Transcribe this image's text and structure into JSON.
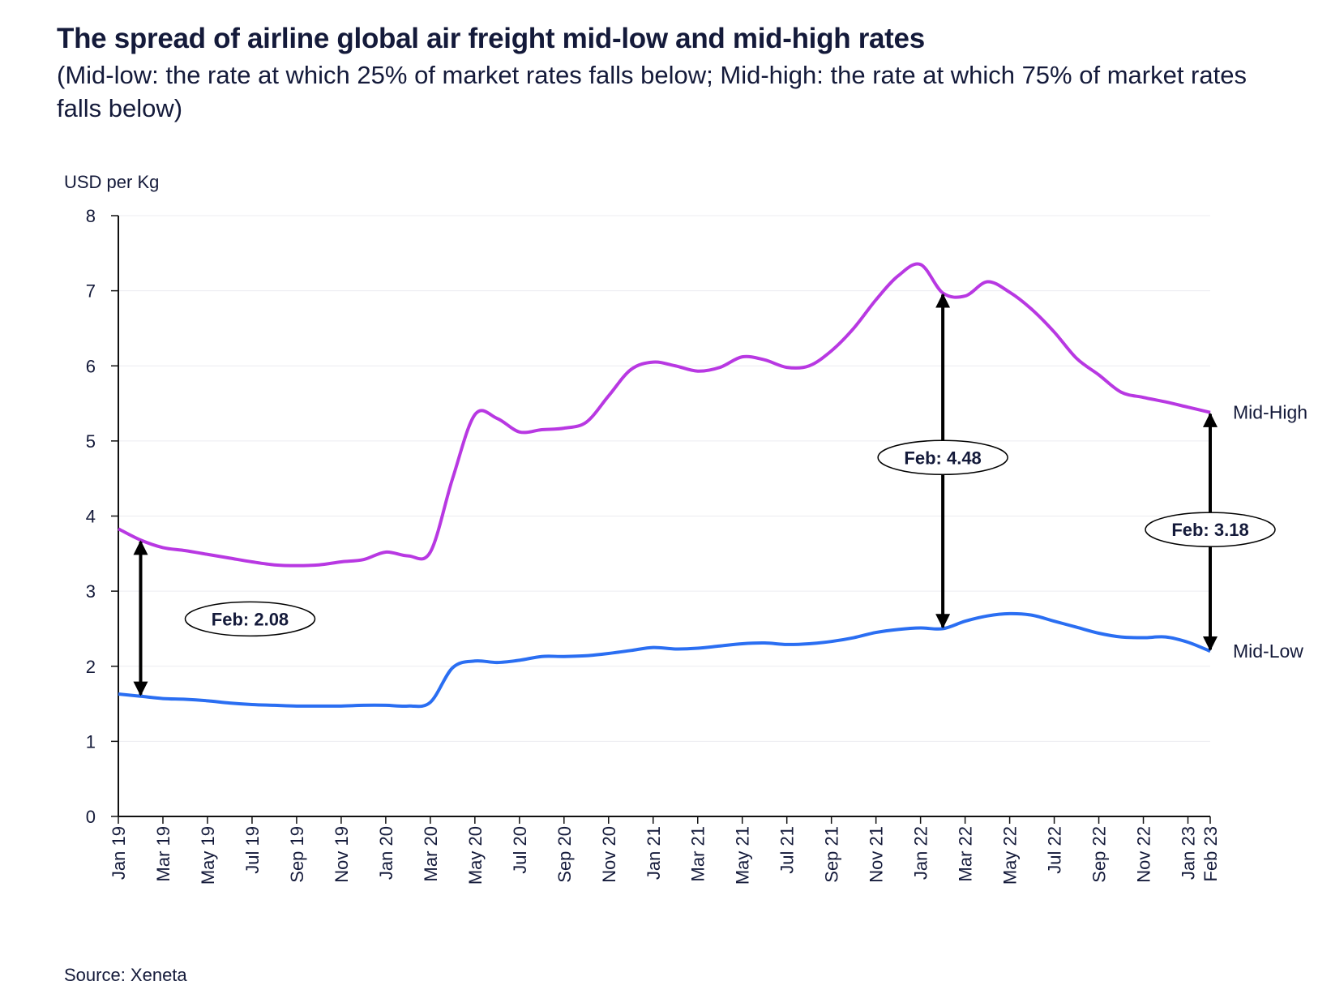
{
  "chart_data": {
    "type": "line",
    "title": "The spread of airline global air freight mid-low and mid-high rates",
    "subtitle": "(Mid-low: the rate at which 25% of market rates falls below; Mid-high: the rate at which 75% of market rates falls below)",
    "ylabel": "USD per Kg",
    "xlabel": "",
    "ylim": [
      0,
      8
    ],
    "yticks": [
      0,
      1,
      2,
      3,
      4,
      5,
      6,
      7,
      8
    ],
    "grid": true,
    "x": [
      "Jan 19",
      "Feb 19",
      "Mar 19",
      "Apr 19",
      "May 19",
      "Jun 19",
      "Jul 19",
      "Aug 19",
      "Sep 19",
      "Oct 19",
      "Nov 19",
      "Dec 19",
      "Jan 20",
      "Feb 20",
      "Mar 20",
      "Apr 20",
      "May 20",
      "Jun 20",
      "Jul 20",
      "Aug 20",
      "Sep 20",
      "Oct 20",
      "Nov 20",
      "Dec 20",
      "Jan 21",
      "Feb 21",
      "Mar 21",
      "Apr 21",
      "May 21",
      "Jun 21",
      "Jul 21",
      "Aug 21",
      "Sep 21",
      "Oct 21",
      "Nov 21",
      "Dec 21",
      "Jan 22",
      "Feb 22",
      "Mar 22",
      "Apr 22",
      "May 22",
      "Jun 22",
      "Jul 22",
      "Aug 22",
      "Sep 22",
      "Oct 22",
      "Nov 22",
      "Dec 22",
      "Jan 23",
      "Feb 23"
    ],
    "xtick_labels": [
      "Jan 19",
      "Mar 19",
      "May 19",
      "Jul 19",
      "Sep 19",
      "Nov 19",
      "Jan 20",
      "Mar 20",
      "May 20",
      "Jul 20",
      "Sep 20",
      "Nov 20",
      "Jan 21",
      "Mar 21",
      "May 21",
      "Jul 21",
      "Sep 21",
      "Nov 21",
      "Jan 22",
      "Mar 22",
      "May 22",
      "Jul 22",
      "Sep 22",
      "Nov 22",
      "Jan 23",
      "Feb 23"
    ],
    "series": [
      {
        "name": "Mid-High",
        "color": "#b838e2",
        "values": [
          3.83,
          3.68,
          3.58,
          3.54,
          3.49,
          3.44,
          3.39,
          3.35,
          3.34,
          3.35,
          3.39,
          3.42,
          3.52,
          3.47,
          3.52,
          4.5,
          5.35,
          5.3,
          5.12,
          5.15,
          5.17,
          5.25,
          5.6,
          5.95,
          6.05,
          6.0,
          5.93,
          5.98,
          6.12,
          6.08,
          5.98,
          6.0,
          6.2,
          6.5,
          6.88,
          7.2,
          7.35,
          6.97,
          6.93,
          7.12,
          6.98,
          6.75,
          6.45,
          6.1,
          5.88,
          5.65,
          5.58,
          5.52,
          5.45,
          5.38
        ]
      },
      {
        "name": "Mid-Low",
        "color": "#2a6ef2",
        "values": [
          1.63,
          1.6,
          1.57,
          1.56,
          1.54,
          1.51,
          1.49,
          1.48,
          1.47,
          1.47,
          1.47,
          1.48,
          1.48,
          1.47,
          1.52,
          1.98,
          2.07,
          2.05,
          2.08,
          2.13,
          2.13,
          2.14,
          2.17,
          2.21,
          2.25,
          2.23,
          2.24,
          2.27,
          2.3,
          2.31,
          2.29,
          2.3,
          2.33,
          2.38,
          2.45,
          2.49,
          2.51,
          2.5,
          2.6,
          2.67,
          2.7,
          2.68,
          2.6,
          2.52,
          2.44,
          2.39,
          2.38,
          2.39,
          2.32,
          2.2
        ]
      }
    ],
    "annotations": [
      {
        "x": "Feb 19",
        "label": "Feb: 2.08"
      },
      {
        "x": "Feb 22",
        "label": "Feb: 4.48"
      },
      {
        "x": "Feb 23",
        "label": "Feb: 3.18"
      }
    ],
    "source": "Source: Xeneta"
  }
}
